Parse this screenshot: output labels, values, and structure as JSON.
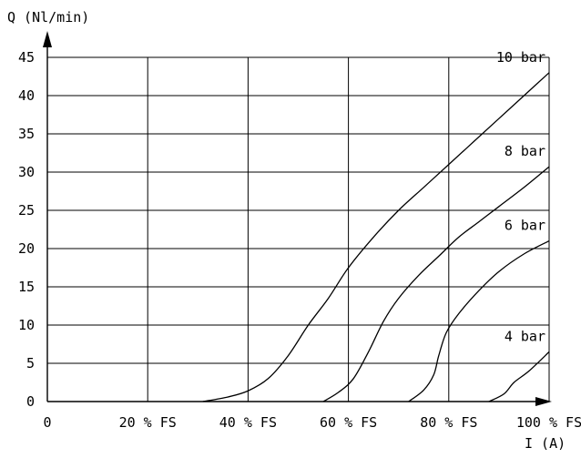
{
  "chart_data": {
    "type": "line",
    "ylabel": "Q (Nl/min)",
    "xlabel": "I (A)",
    "xlim": [
      0,
      100
    ],
    "ylim": [
      0,
      45
    ],
    "grid": true,
    "x_ticks": [
      0,
      20,
      40,
      60,
      80,
      100
    ],
    "x_tick_labels": [
      "0",
      "20 % FS",
      "40 % FS",
      "60 % FS",
      "80 % FS",
      "100 % FS"
    ],
    "y_ticks": [
      0,
      5,
      10,
      15,
      20,
      25,
      30,
      35,
      40,
      45
    ],
    "y_tick_labels": [
      "0",
      "5",
      "10",
      "15",
      "20",
      "25",
      "30",
      "35",
      "40",
      "45"
    ],
    "series": [
      {
        "name": "10 bar",
        "points": [
          [
            31,
            0
          ],
          [
            36,
            0.6
          ],
          [
            40,
            1.4
          ],
          [
            44,
            3
          ],
          [
            48,
            6
          ],
          [
            52,
            10
          ],
          [
            56,
            13.5
          ],
          [
            60,
            17.5
          ],
          [
            65,
            21.5
          ],
          [
            70,
            25
          ],
          [
            75,
            28
          ],
          [
            80,
            31
          ],
          [
            85,
            34
          ],
          [
            90,
            37
          ],
          [
            95,
            40
          ],
          [
            100,
            43
          ]
        ]
      },
      {
        "name": "8 bar",
        "points": [
          [
            55,
            0
          ],
          [
            58,
            1.2
          ],
          [
            61,
            3
          ],
          [
            64,
            6.5
          ],
          [
            67,
            10.5
          ],
          [
            70,
            13.5
          ],
          [
            74,
            16.5
          ],
          [
            78,
            19
          ],
          [
            82,
            21.5
          ],
          [
            86,
            23.5
          ],
          [
            90,
            25.5
          ],
          [
            95,
            28
          ],
          [
            100,
            30.7
          ]
        ]
      },
      {
        "name": "6 bar",
        "points": [
          [
            72,
            0
          ],
          [
            75,
            1.5
          ],
          [
            77,
            3.5
          ],
          [
            78,
            6
          ],
          [
            79.5,
            9
          ],
          [
            82,
            11.5
          ],
          [
            86,
            14.5
          ],
          [
            90,
            17
          ],
          [
            95,
            19.3
          ],
          [
            100,
            21
          ]
        ]
      },
      {
        "name": "4 bar",
        "points": [
          [
            88,
            0
          ],
          [
            91,
            1
          ],
          [
            93,
            2.5
          ],
          [
            96,
            4
          ],
          [
            100,
            6.5
          ]
        ]
      }
    ]
  }
}
